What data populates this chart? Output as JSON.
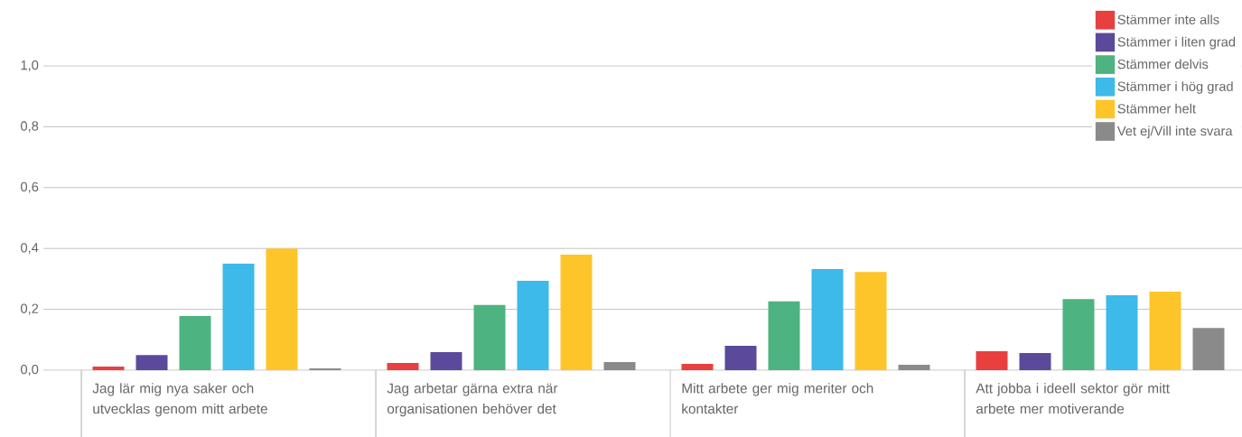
{
  "chart_data": {
    "type": "bar",
    "categories": [
      "Jag lär mig nya saker och utvecklas genom mitt arbete",
      "Jag arbetar gärna extra när organisationen behöver det",
      "Mitt arbete ger mig meriter och kontakter",
      "Att jobba i ideell sektor gör mitt arbete mer motiverande"
    ],
    "series": [
      {
        "name": "Stämmer inte alls",
        "color": "#e8403f",
        "values": [
          0.012,
          0.024,
          0.021,
          0.062
        ]
      },
      {
        "name": "Stämmer i liten grad",
        "color": "#5b4a9b",
        "values": [
          0.05,
          0.059,
          0.08,
          0.056
        ]
      },
      {
        "name": "Stämmer delvis",
        "color": "#4db380",
        "values": [
          0.178,
          0.214,
          0.226,
          0.234
        ]
      },
      {
        "name": "Stämmer i hög grad",
        "color": "#3db9ea",
        "values": [
          0.35,
          0.294,
          0.332,
          0.246
        ]
      },
      {
        "name": "Stämmer helt",
        "color": "#fdc52a",
        "values": [
          0.4,
          0.38,
          0.323,
          0.258
        ]
      },
      {
        "name": "Vet ej/Vill inte svara",
        "color": "#8a8a8a",
        "values": [
          0.006,
          0.027,
          0.018,
          0.139
        ]
      }
    ],
    "ylim": [
      0,
      1.0
    ],
    "yticks": [
      {
        "value": 0,
        "label": "0,0"
      },
      {
        "value": 0.2,
        "label": "0,2"
      },
      {
        "value": 0.4,
        "label": "0,4"
      },
      {
        "value": 0.6,
        "label": "0,6"
      },
      {
        "value": 0.8,
        "label": "0,8"
      },
      {
        "value": 1.0,
        "label": "1,0"
      }
    ],
    "grid": "y",
    "legend": "top right"
  }
}
